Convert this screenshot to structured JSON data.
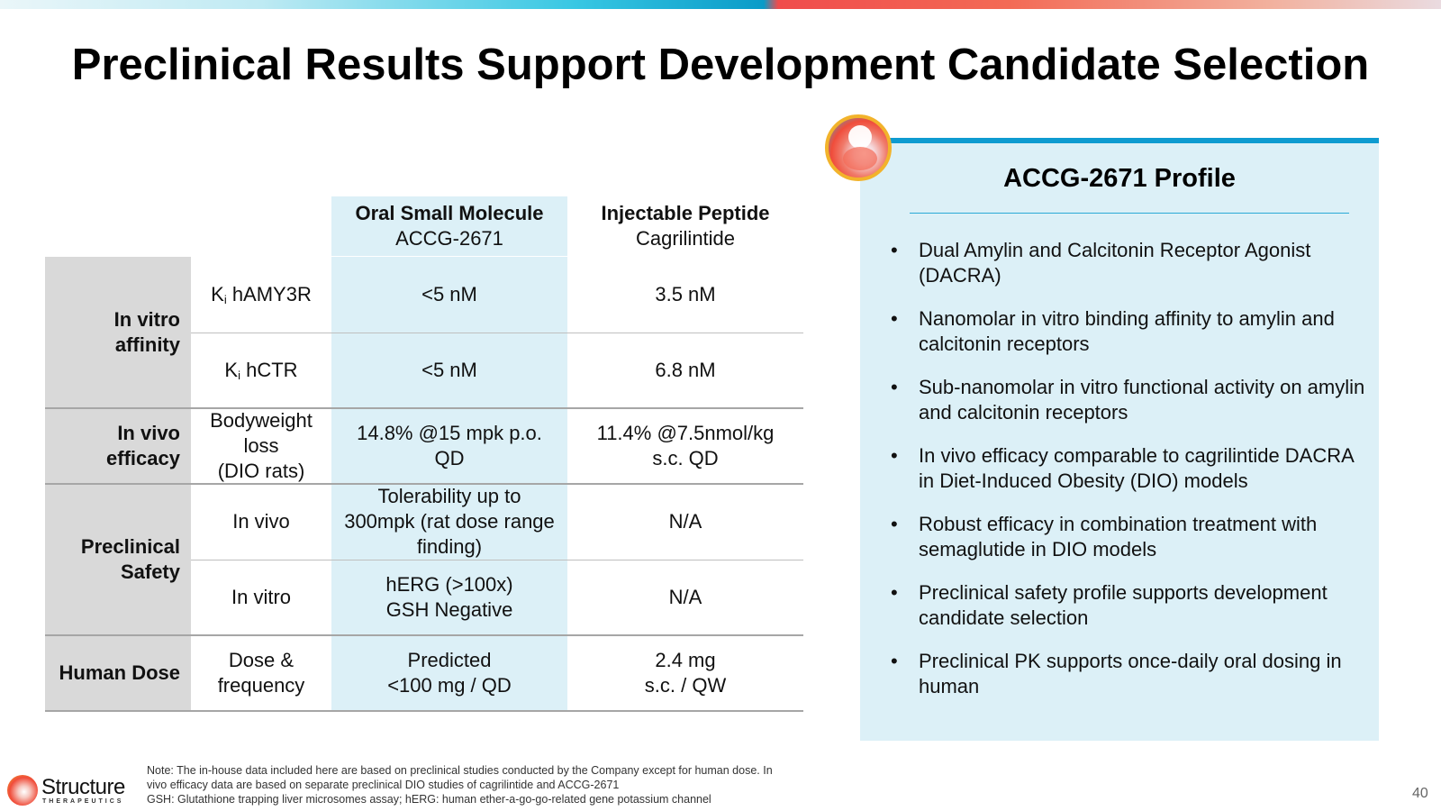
{
  "title": "Preclinical Results Support Development Candidate Selection",
  "table": {
    "col_oral": {
      "title": "Oral Small Molecule",
      "subtitle": "ACCG-2671"
    },
    "col_inj": {
      "title": "Injectable Peptide",
      "subtitle": "Cagrilintide"
    },
    "categories": {
      "in_vitro_affinity": [
        "In vitro",
        "affinity"
      ],
      "in_vivo_efficacy": [
        "In vivo",
        "efficacy"
      ],
      "preclinical_safety": [
        "Preclinical",
        "Safety"
      ],
      "human_dose": [
        "Human Dose"
      ]
    },
    "rows": [
      {
        "param_prefix": "K",
        "param_sub": "i",
        "param_suffix": " hAMY3R",
        "oral": [
          "<5 nM"
        ],
        "inj": [
          "3.5 nM"
        ]
      },
      {
        "param_prefix": "K",
        "param_sub": "i",
        "param_suffix": " hCTR",
        "oral": [
          "<5 nM"
        ],
        "inj": [
          "6.8 nM"
        ]
      },
      {
        "param": [
          "Bodyweight",
          "loss",
          "(DIO rats)"
        ],
        "oral": [
          "14.8% @15 mpk p.o.",
          "QD"
        ],
        "inj": [
          "11.4% @7.5nmol/kg",
          "s.c. QD"
        ]
      },
      {
        "param": [
          "In vivo"
        ],
        "oral": [
          "Tolerability up to",
          "300mpk (rat dose range",
          "finding)"
        ],
        "inj": [
          "N/A"
        ]
      },
      {
        "param": [
          "In vitro"
        ],
        "oral": [
          "hERG (>100x)",
          "GSH Negative"
        ],
        "inj": [
          "N/A"
        ]
      },
      {
        "param": [
          "Dose &",
          "frequency"
        ],
        "oral": [
          "Predicted",
          "<100 mg / QD"
        ],
        "inj": [
          "2.4 mg",
          "s.c. / QW"
        ]
      }
    ]
  },
  "profile": {
    "title": "ACCG-2671 Profile",
    "bullets": [
      "Dual Amylin and Calcitonin Receptor Agonist (DACRA)",
      "Nanomolar in vitro binding affinity to amylin and calcitonin receptors",
      "Sub-nanomolar in vitro functional activity on amylin and calcitonin receptors",
      "In vivo efficacy comparable to cagrilintide DACRA in Diet-Induced Obesity (DIO) models",
      "Robust efficacy in combination treatment with semaglutide in DIO models",
      "Preclinical safety profile supports development candidate selection",
      "Preclinical PK supports once-daily oral dosing in human"
    ],
    "bullet_glyph": "•"
  },
  "footer": {
    "brand": "Structure",
    "brand_sub": "THERAPEUTICS",
    "note_lines": [
      "Note: The in-house data included here are based on preclinical studies conducted by the Company except for human dose. In",
      "vivo efficacy data are based on separate preclinical DIO studies of cagrilintide and ACCG-2671",
      "GSH: Glutathione trapping liver microsomes assay; hERG: human ether-a-go-go-related gene potassium channel"
    ],
    "page_number": "40"
  },
  "colors": {
    "panel_bg": "#dcf0f7",
    "accent_blue": "#0e9bd0",
    "category_grey": "#d9d9d9"
  },
  "icons": {
    "slide_logo": "structure-logo-icon"
  }
}
